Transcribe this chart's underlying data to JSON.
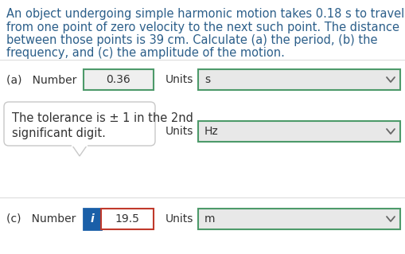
{
  "bg_color": "#ffffff",
  "text_color_blue": "#2c5f8a",
  "text_color_dark": "#333333",
  "problem_text_lines": [
    "An object undergoing simple harmonic motion takes 0.18 s to travel",
    "from one point of zero velocity to the next such point. The distance",
    "between those points is 39 cm. Calculate (a) the period, (b) the",
    "frequency, and (c) the amplitude of the motion."
  ],
  "row_a_label": "(a)   Number",
  "row_a_value": "0.36",
  "row_a_units_label": "Units",
  "row_a_units_value": "s",
  "tooltip_line1": "The tolerance is ± 1 in the 2nd",
  "tooltip_line2": "significant digit.",
  "row_b_units_label": "Units",
  "row_b_units_value": "Hz",
  "row_c_label": "(c)   Number",
  "row_c_value": "19.5",
  "row_c_units_label": "Units",
  "row_c_units_value": "m",
  "green_border": "#4d9a6a",
  "blue_border": "#1a5fa8",
  "red_border": "#c0392b",
  "input_bg": "#efefef",
  "dropdown_bg": "#e8e8e8",
  "tooltip_bg": "#ffffff",
  "tooltip_border": "#c8c8c8",
  "info_bg": "#1a5fa8",
  "info_fg": "#ffffff",
  "font_size_body": 10.5,
  "font_size_ui": 10.0
}
